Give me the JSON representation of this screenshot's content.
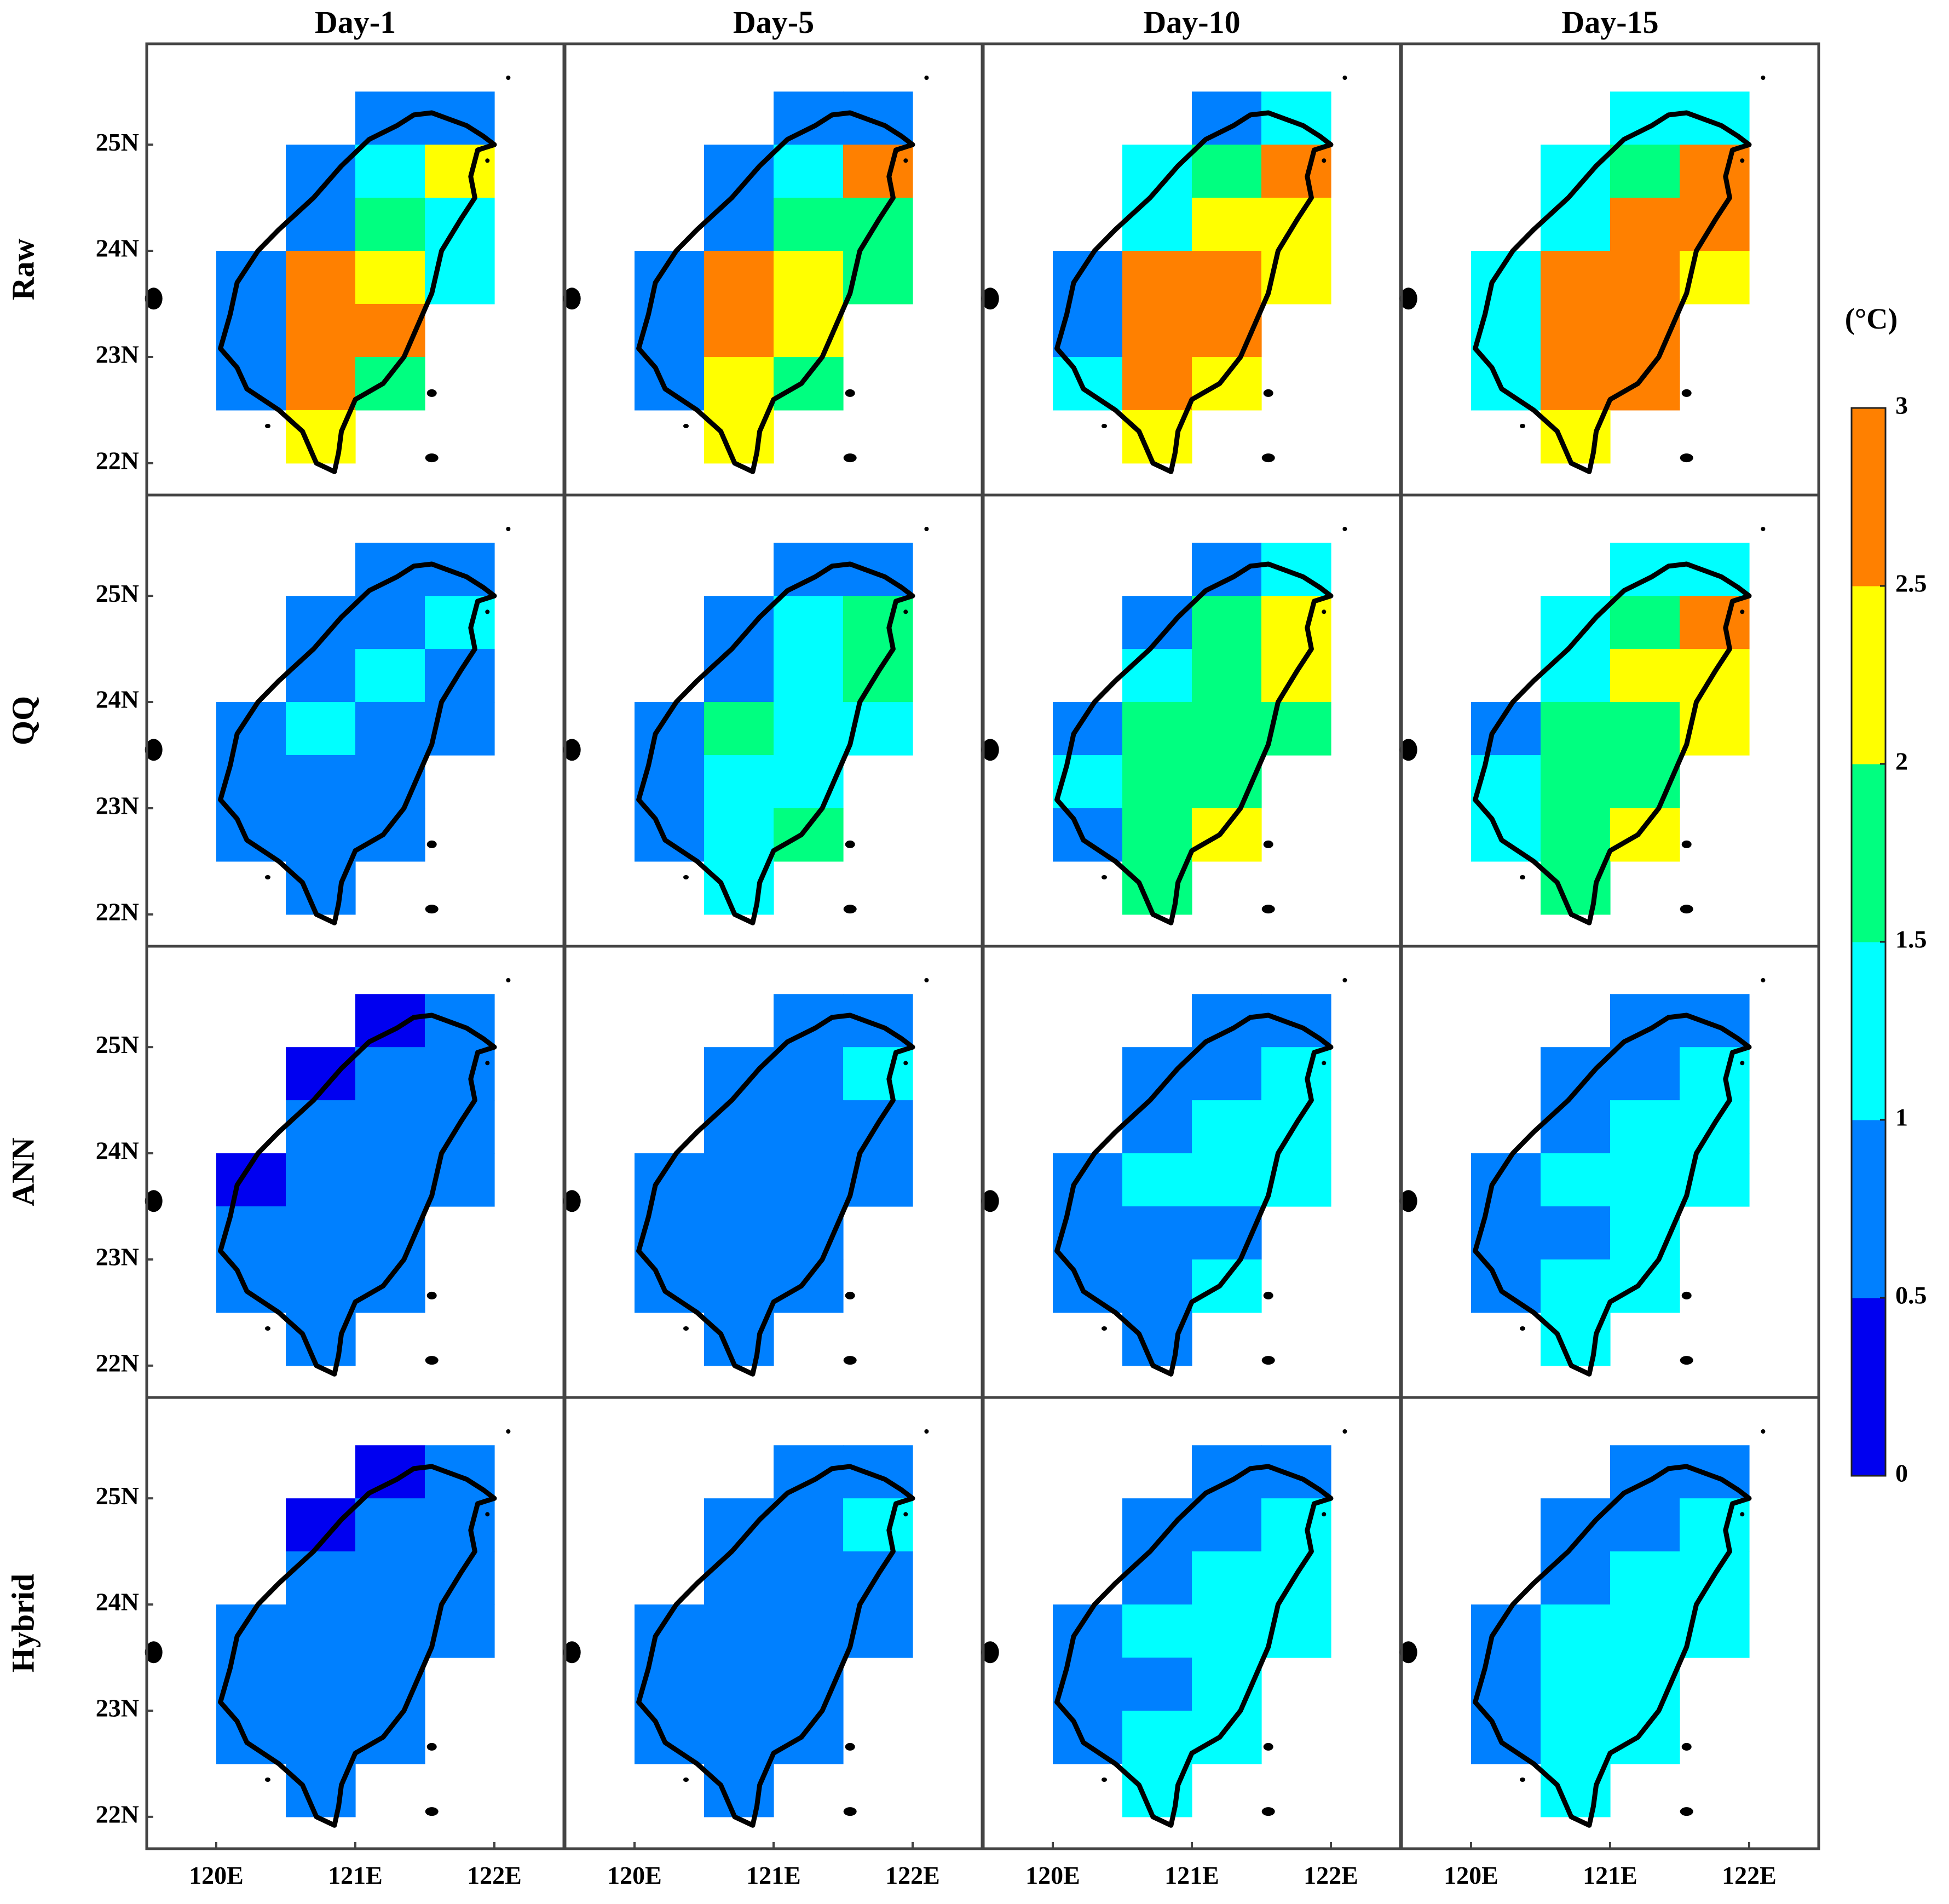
{
  "chart_data": {
    "type": "heatmap",
    "title": "",
    "columns": [
      "Day-1",
      "Day-5",
      "Day-10",
      "Day-15"
    ],
    "rows": [
      "Raw",
      "QQ",
      "ANN",
      "Hybrid"
    ],
    "x_ticks": [
      "120E",
      "121E",
      "122E"
    ],
    "y_ticks": [
      "25N",
      "24N",
      "23N",
      "22N"
    ],
    "x_tick_values": [
      120,
      121,
      122
    ],
    "y_tick_values": [
      25,
      24,
      23,
      22
    ],
    "lon_range": [
      119.5,
      122.5
    ],
    "lat_range": [
      21.7,
      25.95
    ],
    "grid": {
      "lon_edges": [
        120,
        120.5,
        121,
        121.5,
        122
      ],
      "lat_edges": [
        25.5,
        25,
        24.5,
        24,
        23.5,
        23,
        22.5,
        22
      ],
      "mask": [
        [
          0,
          0,
          1,
          1
        ],
        [
          0,
          1,
          1,
          1
        ],
        [
          0,
          1,
          1,
          1
        ],
        [
          1,
          1,
          1,
          1
        ],
        [
          1,
          1,
          1,
          0
        ],
        [
          1,
          1,
          1,
          0
        ],
        [
          0,
          1,
          0,
          0
        ]
      ]
    },
    "colorbar": {
      "unit": "(°C)",
      "bins": [
        0,
        0.5,
        1,
        1.5,
        2,
        2.5,
        3
      ],
      "tick_labels": [
        "0",
        "0.5",
        "1",
        "1.5",
        "2",
        "2.5",
        "3"
      ],
      "colors": [
        "#0000f0",
        "#0080ff",
        "#00ffff",
        "#00ff80",
        "#ffff00",
        "#ff8000"
      ]
    },
    "values": [
      [
        [
          [
            0,
            0,
            0.75,
            0.75
          ],
          [
            0,
            0.75,
            1.25,
            2.25
          ],
          [
            0,
            0.75,
            1.75,
            1.25
          ],
          [
            0.75,
            2.75,
            2.25,
            1.25
          ],
          [
            0.75,
            2.75,
            2.75,
            0
          ],
          [
            0.75,
            2.75,
            1.75,
            0
          ],
          [
            0,
            2.25,
            0,
            0
          ]
        ],
        [
          [
            0,
            0,
            0.75,
            0.75
          ],
          [
            0,
            0.75,
            1.25,
            2.75
          ],
          [
            0,
            0.75,
            1.75,
            1.75
          ],
          [
            0.75,
            2.75,
            2.25,
            1.75
          ],
          [
            0.75,
            2.75,
            2.25,
            0
          ],
          [
            0.75,
            2.25,
            1.75,
            0
          ],
          [
            0,
            2.25,
            0,
            0
          ]
        ],
        [
          [
            0,
            0,
            0.75,
            1.25
          ],
          [
            0,
            1.25,
            1.75,
            2.75
          ],
          [
            0,
            1.25,
            2.25,
            2.25
          ],
          [
            0.75,
            2.75,
            2.75,
            2.25
          ],
          [
            0.75,
            2.75,
            2.75,
            0
          ],
          [
            1.25,
            2.75,
            2.25,
            0
          ],
          [
            0,
            2.25,
            0,
            0
          ]
        ],
        [
          [
            0,
            0,
            1.25,
            1.25
          ],
          [
            0,
            1.25,
            1.75,
            2.75
          ],
          [
            0,
            1.25,
            2.75,
            2.75
          ],
          [
            1.25,
            2.75,
            2.75,
            2.25
          ],
          [
            1.25,
            2.75,
            2.75,
            0
          ],
          [
            1.25,
            2.75,
            2.75,
            0
          ],
          [
            0,
            2.25,
            0,
            0
          ]
        ]
      ],
      [
        [
          [
            0,
            0,
            0.75,
            0.75
          ],
          [
            0,
            0.75,
            0.75,
            1.25
          ],
          [
            0,
            0.75,
            1.25,
            0.75
          ],
          [
            0.75,
            1.25,
            0.75,
            0.75
          ],
          [
            0.75,
            0.75,
            0.75,
            0
          ],
          [
            0.75,
            0.75,
            0.75,
            0
          ],
          [
            0,
            0.75,
            0,
            0
          ]
        ],
        [
          [
            0,
            0,
            0.75,
            0.75
          ],
          [
            0,
            0.75,
            1.25,
            1.75
          ],
          [
            0,
            0.75,
            1.25,
            1.75
          ],
          [
            0.75,
            1.75,
            1.25,
            1.25
          ],
          [
            0.75,
            1.25,
            1.25,
            0
          ],
          [
            0.75,
            1.25,
            1.75,
            0
          ],
          [
            0,
            1.25,
            0,
            0
          ]
        ],
        [
          [
            0,
            0,
            0.75,
            1.25
          ],
          [
            0,
            0.75,
            1.75,
            2.25
          ],
          [
            0,
            1.25,
            1.75,
            2.25
          ],
          [
            0.75,
            1.75,
            1.75,
            1.75
          ],
          [
            1.25,
            1.75,
            1.75,
            0
          ],
          [
            0.75,
            1.75,
            2.25,
            0
          ],
          [
            0,
            1.75,
            0,
            0
          ]
        ],
        [
          [
            0,
            0,
            1.25,
            1.25
          ],
          [
            0,
            1.25,
            1.75,
            2.75
          ],
          [
            0,
            1.25,
            2.25,
            2.25
          ],
          [
            0.75,
            1.75,
            1.75,
            2.25
          ],
          [
            1.25,
            1.75,
            1.75,
            0
          ],
          [
            1.25,
            1.75,
            2.25,
            0
          ],
          [
            0,
            1.75,
            0,
            0
          ]
        ]
      ],
      [
        [
          [
            0,
            0,
            0.25,
            0.75
          ],
          [
            0,
            0.25,
            0.75,
            0.75
          ],
          [
            0,
            0.75,
            0.75,
            0.75
          ],
          [
            0.25,
            0.75,
            0.75,
            0.75
          ],
          [
            0.75,
            0.75,
            0.75,
            0
          ],
          [
            0.75,
            0.75,
            0.75,
            0
          ],
          [
            0,
            0.75,
            0,
            0
          ]
        ],
        [
          [
            0,
            0,
            0.75,
            0.75
          ],
          [
            0,
            0.75,
            0.75,
            1.25
          ],
          [
            0,
            0.75,
            0.75,
            0.75
          ],
          [
            0.75,
            0.75,
            0.75,
            0.75
          ],
          [
            0.75,
            0.75,
            0.75,
            0
          ],
          [
            0.75,
            0.75,
            0.75,
            0
          ],
          [
            0,
            0.75,
            0,
            0
          ]
        ],
        [
          [
            0,
            0,
            0.75,
            0.75
          ],
          [
            0,
            0.75,
            0.75,
            1.25
          ],
          [
            0,
            0.75,
            1.25,
            1.25
          ],
          [
            0.75,
            1.25,
            1.25,
            1.25
          ],
          [
            0.75,
            0.75,
            0.75,
            0
          ],
          [
            0.75,
            0.75,
            1.25,
            0
          ],
          [
            0,
            0.75,
            0,
            0
          ]
        ],
        [
          [
            0,
            0,
            0.75,
            0.75
          ],
          [
            0,
            0.75,
            0.75,
            1.25
          ],
          [
            0,
            0.75,
            1.25,
            1.25
          ],
          [
            0.75,
            1.25,
            1.25,
            1.25
          ],
          [
            0.75,
            0.75,
            1.25,
            0
          ],
          [
            0.75,
            1.25,
            1.25,
            0
          ],
          [
            0,
            1.25,
            0,
            0
          ]
        ]
      ],
      [
        [
          [
            0,
            0,
            0.25,
            0.75
          ],
          [
            0,
            0.25,
            0.75,
            0.75
          ],
          [
            0,
            0.75,
            0.75,
            0.75
          ],
          [
            0.75,
            0.75,
            0.75,
            0.75
          ],
          [
            0.75,
            0.75,
            0.75,
            0
          ],
          [
            0.75,
            0.75,
            0.75,
            0
          ],
          [
            0,
            0.75,
            0,
            0
          ]
        ],
        [
          [
            0,
            0,
            0.75,
            0.75
          ],
          [
            0,
            0.75,
            0.75,
            1.25
          ],
          [
            0,
            0.75,
            0.75,
            0.75
          ],
          [
            0.75,
            0.75,
            0.75,
            0.75
          ],
          [
            0.75,
            0.75,
            0.75,
            0
          ],
          [
            0.75,
            0.75,
            0.75,
            0
          ],
          [
            0,
            0.75,
            0,
            0
          ]
        ],
        [
          [
            0,
            0,
            0.75,
            0.75
          ],
          [
            0,
            0.75,
            0.75,
            1.25
          ],
          [
            0,
            0.75,
            1.25,
            1.25
          ],
          [
            0.75,
            1.25,
            1.25,
            1.25
          ],
          [
            0.75,
            0.75,
            1.25,
            0
          ],
          [
            0.75,
            1.25,
            1.25,
            0
          ],
          [
            0,
            1.25,
            0,
            0
          ]
        ],
        [
          [
            0,
            0,
            0.75,
            0.75
          ],
          [
            0,
            0.75,
            0.75,
            1.25
          ],
          [
            0,
            0.75,
            1.25,
            1.25
          ],
          [
            0.75,
            1.25,
            1.25,
            1.25
          ],
          [
            0.75,
            1.25,
            1.25,
            0
          ],
          [
            0.75,
            1.25,
            1.25,
            0
          ],
          [
            0,
            1.25,
            0,
            0
          ]
        ]
      ]
    ]
  }
}
